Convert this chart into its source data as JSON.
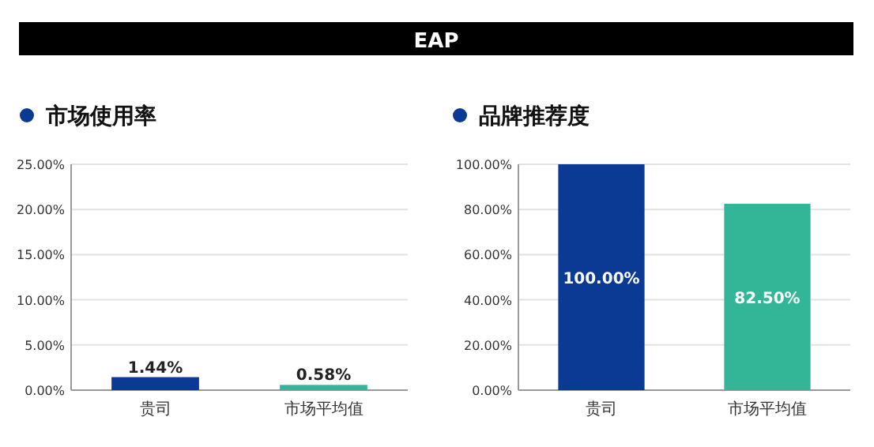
{
  "chart_data": [
    {
      "type": "bar",
      "annotations": [
        "EAP"
      ],
      "title": "市场使用率",
      "categories": [
        "贵司",
        "市场平均值"
      ],
      "values": [
        1.44,
        0.58
      ],
      "colors": [
        "#0a3a94",
        "#33b597"
      ],
      "value_labels": [
        "1.44%",
        "0.58%"
      ],
      "ylim": [
        0,
        25
      ],
      "yticks": [
        {
          "value": 0,
          "label": "0.00%"
        },
        {
          "value": 5,
          "label": "5.00%"
        },
        {
          "value": 10,
          "label": "10.00%"
        },
        {
          "value": 15,
          "label": "15.00%"
        },
        {
          "value": 20,
          "label": "20.00%"
        },
        {
          "value": 25,
          "label": "25.00%"
        }
      ],
      "grid": "y"
    },
    {
      "type": "bar",
      "title": "品牌推荐度",
      "categories": [
        "贵司",
        "市场平均值"
      ],
      "values": [
        100,
        82.5
      ],
      "colors": [
        "#0a3a94",
        "#33b597"
      ],
      "value_labels": [
        "100.00%",
        "82.50%"
      ],
      "ylim": [
        0,
        100
      ],
      "yticks": [
        {
          "value": 0,
          "label": "0.00%"
        },
        {
          "value": 20,
          "label": "20.00%"
        },
        {
          "value": 40,
          "label": "40.00%"
        },
        {
          "value": 60,
          "label": "60.00%"
        },
        {
          "value": 80,
          "label": "80.00%"
        },
        {
          "value": 100,
          "label": "100.00%"
        }
      ],
      "grid": "y"
    }
  ]
}
